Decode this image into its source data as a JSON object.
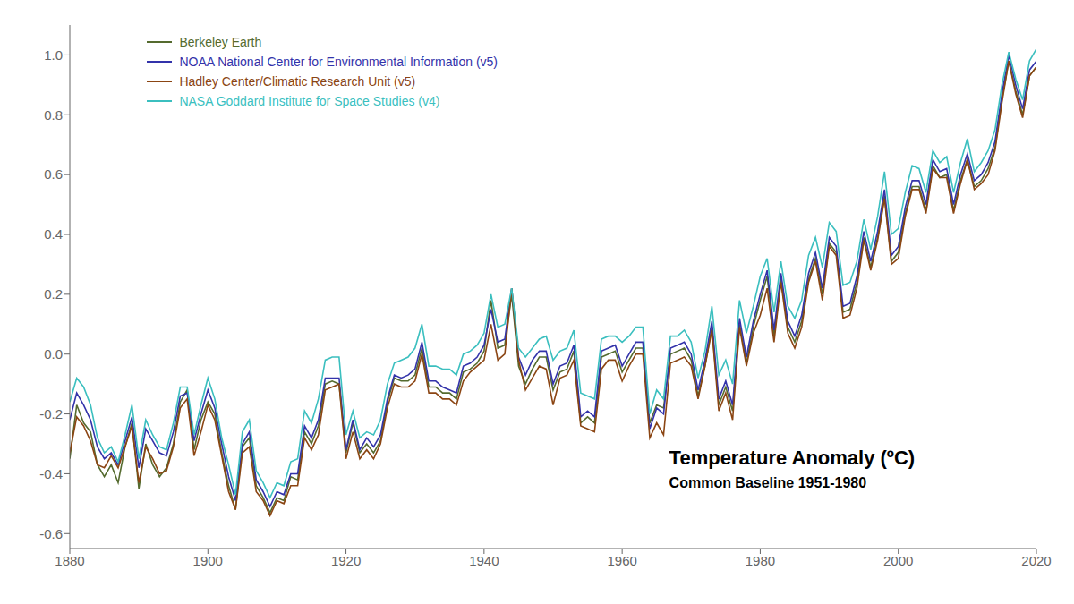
{
  "chart_data": {
    "type": "line",
    "annotations": [
      "Temperature Anomaly (ºC)",
      "Common Baseline 1951-1980"
    ],
    "x": [
      1880,
      1881,
      1882,
      1883,
      1884,
      1885,
      1886,
      1887,
      1888,
      1889,
      1890,
      1891,
      1892,
      1893,
      1894,
      1895,
      1896,
      1897,
      1898,
      1899,
      1900,
      1901,
      1902,
      1903,
      1904,
      1905,
      1906,
      1907,
      1908,
      1909,
      1910,
      1911,
      1912,
      1913,
      1914,
      1915,
      1916,
      1917,
      1918,
      1919,
      1920,
      1921,
      1922,
      1923,
      1924,
      1925,
      1926,
      1927,
      1928,
      1929,
      1930,
      1931,
      1932,
      1933,
      1934,
      1935,
      1936,
      1937,
      1938,
      1939,
      1940,
      1941,
      1942,
      1943,
      1944,
      1945,
      1946,
      1947,
      1948,
      1949,
      1950,
      1951,
      1952,
      1953,
      1954,
      1955,
      1956,
      1957,
      1958,
      1959,
      1960,
      1961,
      1962,
      1963,
      1964,
      1965,
      1966,
      1967,
      1968,
      1969,
      1970,
      1971,
      1972,
      1973,
      1974,
      1975,
      1976,
      1977,
      1978,
      1979,
      1980,
      1981,
      1982,
      1983,
      1984,
      1985,
      1986,
      1987,
      1988,
      1989,
      1990,
      1991,
      1992,
      1993,
      1994,
      1995,
      1996,
      1997,
      1998,
      1999,
      2000,
      2001,
      2002,
      2003,
      2004,
      2005,
      2006,
      2007,
      2008,
      2009,
      2010,
      2011,
      2012,
      2013,
      2014,
      2015,
      2016,
      2017,
      2018,
      2019,
      2020
    ],
    "series": [
      {
        "name": "Berkeley Earth",
        "color": "#556B2F",
        "values": [
          -0.35,
          -0.17,
          -0.23,
          -0.26,
          -0.37,
          -0.41,
          -0.37,
          -0.43,
          -0.31,
          -0.23,
          -0.45,
          -0.3,
          -0.37,
          -0.41,
          -0.38,
          -0.3,
          -0.16,
          -0.12,
          -0.32,
          -0.22,
          -0.16,
          -0.2,
          -0.33,
          -0.44,
          -0.52,
          -0.31,
          -0.28,
          -0.44,
          -0.48,
          -0.53,
          -0.48,
          -0.49,
          -0.41,
          -0.42,
          -0.26,
          -0.3,
          -0.24,
          -0.1,
          -0.09,
          -0.1,
          -0.33,
          -0.23,
          -0.33,
          -0.3,
          -0.33,
          -0.29,
          -0.16,
          -0.08,
          -0.09,
          -0.09,
          -0.07,
          0.02,
          -0.11,
          -0.11,
          -0.13,
          -0.13,
          -0.15,
          -0.06,
          -0.05,
          -0.03,
          0.01,
          0.18,
          0.02,
          0.03,
          0.2,
          -0.04,
          -0.1,
          -0.05,
          -0.01,
          -0.01,
          -0.12,
          -0.06,
          -0.05,
          0.01,
          -0.23,
          -0.21,
          -0.23,
          -0.01,
          0.0,
          0.01,
          -0.06,
          -0.02,
          0.02,
          0.02,
          -0.23,
          -0.17,
          -0.18,
          0.0,
          0.01,
          0.02,
          -0.02,
          -0.14,
          -0.04,
          0.09,
          -0.17,
          -0.11,
          -0.19,
          0.1,
          -0.03,
          0.09,
          0.18,
          0.26,
          0.06,
          0.25,
          0.09,
          0.04,
          0.11,
          0.25,
          0.32,
          0.2,
          0.37,
          0.34,
          0.14,
          0.15,
          0.24,
          0.39,
          0.29,
          0.39,
          0.53,
          0.31,
          0.34,
          0.47,
          0.56,
          0.56,
          0.48,
          0.63,
          0.59,
          0.6,
          0.48,
          0.58,
          0.65,
          0.56,
          0.58,
          0.62,
          0.69,
          0.85,
          0.98,
          0.88,
          0.8,
          0.93,
          0.96
        ]
      },
      {
        "name": "NOAA National Center for Environmental Information (v5)",
        "color": "#3333aa",
        "values": [
          -0.22,
          -0.13,
          -0.17,
          -0.22,
          -0.31,
          -0.35,
          -0.33,
          -0.37,
          -0.29,
          -0.21,
          -0.38,
          -0.25,
          -0.29,
          -0.33,
          -0.34,
          -0.26,
          -0.14,
          -0.13,
          -0.29,
          -0.2,
          -0.12,
          -0.18,
          -0.3,
          -0.41,
          -0.49,
          -0.3,
          -0.26,
          -0.42,
          -0.46,
          -0.51,
          -0.46,
          -0.47,
          -0.4,
          -0.4,
          -0.24,
          -0.28,
          -0.22,
          -0.08,
          -0.08,
          -0.08,
          -0.32,
          -0.22,
          -0.32,
          -0.28,
          -0.31,
          -0.27,
          -0.15,
          -0.07,
          -0.08,
          -0.07,
          -0.05,
          0.04,
          -0.09,
          -0.09,
          -0.11,
          -0.12,
          -0.13,
          -0.04,
          -0.03,
          -0.01,
          0.03,
          0.15,
          0.04,
          0.05,
          0.22,
          -0.01,
          -0.07,
          -0.02,
          0.01,
          0.01,
          -0.1,
          -0.04,
          -0.03,
          0.03,
          -0.21,
          -0.19,
          -0.21,
          0.01,
          0.02,
          0.03,
          -0.04,
          0.0,
          0.04,
          0.04,
          -0.25,
          -0.18,
          -0.2,
          0.02,
          0.03,
          0.04,
          0.0,
          -0.12,
          -0.02,
          0.11,
          -0.15,
          -0.09,
          -0.17,
          0.12,
          -0.01,
          0.11,
          0.2,
          0.28,
          0.08,
          0.27,
          0.11,
          0.06,
          0.13,
          0.27,
          0.34,
          0.22,
          0.39,
          0.36,
          0.16,
          0.17,
          0.26,
          0.41,
          0.31,
          0.41,
          0.55,
          0.33,
          0.36,
          0.49,
          0.58,
          0.58,
          0.5,
          0.65,
          0.61,
          0.62,
          0.5,
          0.6,
          0.67,
          0.58,
          0.6,
          0.64,
          0.71,
          0.87,
          1.0,
          0.9,
          0.82,
          0.95,
          0.98
        ]
      },
      {
        "name": "Hadley Center/Climatic Research Unit (v5)",
        "color": "#8B4513",
        "values": [
          -0.33,
          -0.21,
          -0.24,
          -0.29,
          -0.37,
          -0.38,
          -0.34,
          -0.38,
          -0.31,
          -0.24,
          -0.43,
          -0.31,
          -0.35,
          -0.4,
          -0.39,
          -0.31,
          -0.18,
          -0.15,
          -0.34,
          -0.26,
          -0.17,
          -0.22,
          -0.34,
          -0.46,
          -0.52,
          -0.33,
          -0.31,
          -0.46,
          -0.49,
          -0.54,
          -0.49,
          -0.5,
          -0.44,
          -0.44,
          -0.28,
          -0.32,
          -0.27,
          -0.12,
          -0.11,
          -0.1,
          -0.35,
          -0.26,
          -0.35,
          -0.32,
          -0.35,
          -0.3,
          -0.18,
          -0.1,
          -0.11,
          -0.11,
          -0.09,
          0.0,
          -0.13,
          -0.13,
          -0.15,
          -0.15,
          -0.17,
          -0.09,
          -0.06,
          -0.04,
          -0.02,
          0.1,
          -0.02,
          0.0,
          0.22,
          -0.02,
          -0.12,
          -0.08,
          -0.04,
          -0.05,
          -0.17,
          -0.08,
          -0.07,
          -0.02,
          -0.24,
          -0.25,
          -0.26,
          -0.05,
          -0.02,
          -0.02,
          -0.09,
          -0.04,
          0.0,
          0.0,
          -0.28,
          -0.23,
          -0.27,
          -0.03,
          -0.02,
          -0.01,
          -0.04,
          -0.15,
          -0.04,
          0.08,
          -0.19,
          -0.13,
          -0.22,
          0.09,
          -0.04,
          0.07,
          0.13,
          0.22,
          0.04,
          0.24,
          0.07,
          0.02,
          0.09,
          0.24,
          0.31,
          0.18,
          0.36,
          0.33,
          0.12,
          0.13,
          0.22,
          0.38,
          0.28,
          0.38,
          0.52,
          0.3,
          0.32,
          0.46,
          0.55,
          0.55,
          0.47,
          0.62,
          0.59,
          0.59,
          0.47,
          0.57,
          0.65,
          0.55,
          0.57,
          0.6,
          0.68,
          0.84,
          0.98,
          0.87,
          0.79,
          0.93,
          0.96
        ]
      },
      {
        "name": "NASA Goddard Institute for Space Studies (v4)",
        "color": "#3bbfbf",
        "values": [
          -0.16,
          -0.08,
          -0.11,
          -0.17,
          -0.28,
          -0.33,
          -0.31,
          -0.36,
          -0.27,
          -0.17,
          -0.35,
          -0.22,
          -0.27,
          -0.31,
          -0.32,
          -0.23,
          -0.11,
          -0.11,
          -0.27,
          -0.17,
          -0.08,
          -0.15,
          -0.28,
          -0.37,
          -0.47,
          -0.26,
          -0.22,
          -0.39,
          -0.43,
          -0.48,
          -0.43,
          -0.44,
          -0.36,
          -0.35,
          -0.19,
          -0.23,
          -0.15,
          -0.02,
          -0.01,
          -0.01,
          -0.27,
          -0.19,
          -0.28,
          -0.26,
          -0.27,
          -0.22,
          -0.1,
          -0.03,
          -0.02,
          -0.01,
          0.02,
          0.1,
          -0.04,
          -0.04,
          -0.05,
          -0.05,
          -0.07,
          0.0,
          0.01,
          0.03,
          0.07,
          0.2,
          0.09,
          0.1,
          0.22,
          0.02,
          -0.01,
          0.02,
          0.05,
          0.06,
          -0.02,
          0.01,
          0.02,
          0.08,
          -0.13,
          -0.14,
          -0.15,
          0.05,
          0.06,
          0.06,
          0.04,
          0.06,
          0.09,
          0.09,
          -0.2,
          -0.12,
          -0.15,
          0.06,
          0.06,
          0.08,
          0.04,
          -0.08,
          0.01,
          0.16,
          -0.07,
          -0.02,
          -0.1,
          0.18,
          0.07,
          0.16,
          0.26,
          0.32,
          0.14,
          0.31,
          0.16,
          0.12,
          0.18,
          0.33,
          0.39,
          0.29,
          0.44,
          0.41,
          0.23,
          0.24,
          0.31,
          0.45,
          0.35,
          0.46,
          0.61,
          0.4,
          0.42,
          0.54,
          0.63,
          0.62,
          0.54,
          0.68,
          0.64,
          0.66,
          0.54,
          0.64,
          0.72,
          0.61,
          0.64,
          0.68,
          0.75,
          0.9,
          1.01,
          0.92,
          0.85,
          0.98,
          1.02
        ]
      }
    ],
    "xlim": [
      1880,
      2020
    ],
    "xticks": [
      1880,
      1900,
      1920,
      1940,
      1960,
      1980,
      2000,
      2020
    ],
    "ylim": [
      -0.65,
      1.1
    ],
    "yticks": [
      -0.6,
      -0.4,
      -0.2,
      {
        "value": 0.0,
        "label": "0.0"
      },
      0.2,
      0.4,
      0.6,
      0.8,
      {
        "value": 1.0,
        "label": "1.0"
      }
    ],
    "grid": false,
    "legend": "upper left"
  }
}
